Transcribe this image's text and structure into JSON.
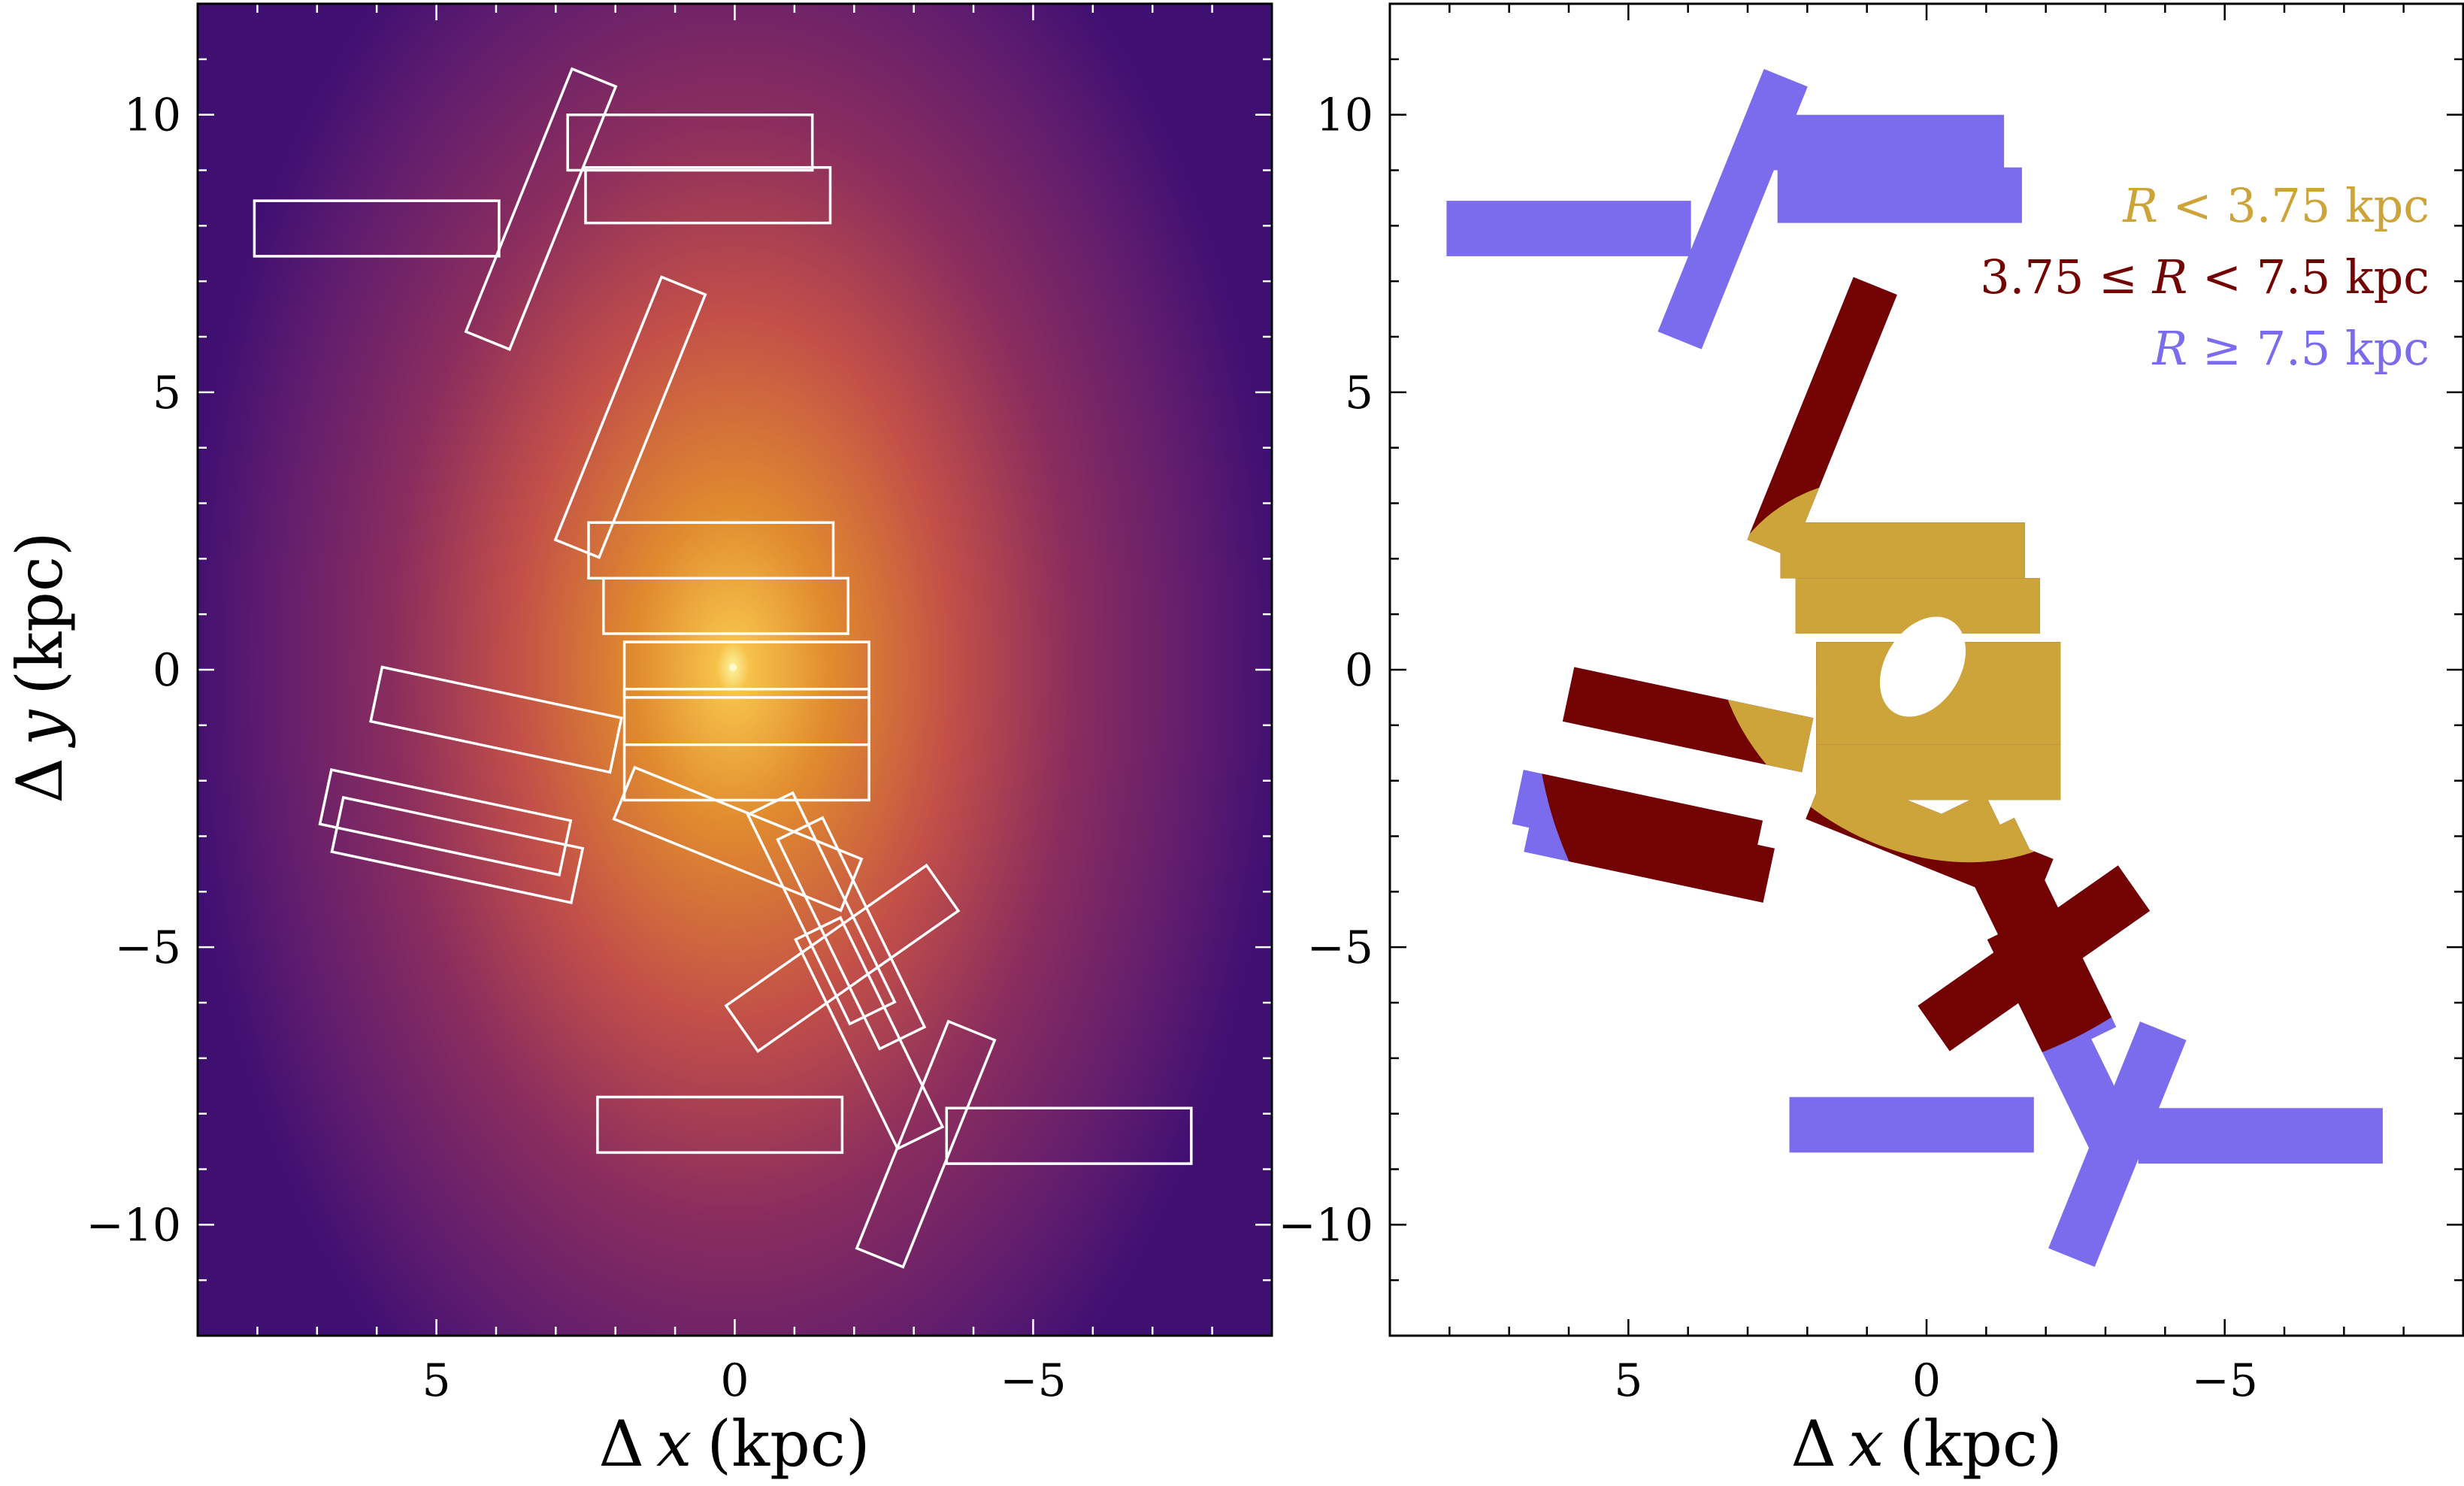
{
  "figure": {
    "colors": {
      "inner": "#cda43a",
      "middle": "#730202",
      "outer": "#7a6cec",
      "box_outline": "#ffffff",
      "density_core": "#ffe566",
      "density_mid": "#e07a2a",
      "density_edge": "#5a1a6a"
    }
  },
  "chart_data": [
    {
      "type": "heatmap",
      "panel": "left",
      "xlabel_symbol": "Δ",
      "xlabel_var": "x",
      "xlabel_unit": "(kpc)",
      "ylabel_symbol": "Δ",
      "ylabel_var": "y",
      "ylabel_unit": "(kpc)",
      "xlim": [
        9.0,
        -9.0
      ],
      "ylim": [
        -12.0,
        12.0
      ],
      "x_ticks": [
        5,
        0,
        -5
      ],
      "x_tick_labels": [
        "5",
        "0",
        "−5"
      ],
      "y_ticks": [
        10,
        5,
        0,
        -5,
        -10
      ],
      "y_tick_labels": [
        "10",
        "5",
        "0",
        "−5",
        "−10"
      ],
      "density_center": [
        0,
        0
      ],
      "grid": false,
      "fields": [
        {
          "cx": 6.0,
          "cy": 7.95,
          "w": 4.1,
          "h": 1.0,
          "angle": 0
        },
        {
          "cx": 0.75,
          "cy": 9.5,
          "w": 4.1,
          "h": 1.0,
          "angle": 0
        },
        {
          "cx": 0.45,
          "cy": 8.55,
          "w": 4.1,
          "h": 1.0,
          "angle": 0
        },
        {
          "cx": 3.25,
          "cy": 8.3,
          "w": 4.75,
          "h": 0.85,
          "angle": -68
        },
        {
          "cx": 1.75,
          "cy": 4.55,
          "w": 4.75,
          "h": 0.85,
          "angle": -68
        },
        {
          "cx": 0.4,
          "cy": 2.15,
          "w": 4.1,
          "h": 1.0,
          "angle": 0
        },
        {
          "cx": 0.15,
          "cy": 1.15,
          "w": 4.1,
          "h": 1.0,
          "angle": 0
        },
        {
          "cx": -0.2,
          "cy": 0.0,
          "w": 4.1,
          "h": 1.0,
          "angle": 0
        },
        {
          "cx": -0.2,
          "cy": -0.85,
          "w": 4.1,
          "h": 1.0,
          "angle": 0
        },
        {
          "cx": 4.0,
          "cy": -0.9,
          "w": 4.1,
          "h": 1.0,
          "angle": 12
        },
        {
          "cx": 4.85,
          "cy": -2.75,
          "w": 4.1,
          "h": 1.0,
          "angle": 12
        },
        {
          "cx": 4.65,
          "cy": -3.25,
          "w": 4.1,
          "h": 1.0,
          "angle": 12
        },
        {
          "cx": -0.2,
          "cy": -1.85,
          "w": 4.1,
          "h": 1.0,
          "angle": 0
        },
        {
          "cx": -0.05,
          "cy": -3.05,
          "w": 4.1,
          "h": 1.0,
          "angle": 22
        },
        {
          "cx": -1.45,
          "cy": -4.3,
          "w": 3.9,
          "h": 0.9,
          "angle": 64
        },
        {
          "cx": -1.95,
          "cy": -4.75,
          "w": 3.9,
          "h": 0.9,
          "angle": 64
        },
        {
          "cx": -1.8,
          "cy": -5.2,
          "w": 4.1,
          "h": 1.0,
          "angle": -35
        },
        {
          "cx": -2.25,
          "cy": -6.55,
          "w": 3.9,
          "h": 0.9,
          "angle": 64
        },
        {
          "cx": 0.25,
          "cy": -8.2,
          "w": 4.1,
          "h": 1.0,
          "angle": 0
        },
        {
          "cx": -5.6,
          "cy": -8.4,
          "w": 4.1,
          "h": 1.0,
          "angle": 0
        },
        {
          "cx": -3.2,
          "cy": -8.55,
          "w": 4.1,
          "h": 0.9,
          "angle": -68
        }
      ]
    },
    {
      "type": "map",
      "panel": "right",
      "xlabel_symbol": "Δ",
      "xlabel_var": "x",
      "xlabel_unit": "(kpc)",
      "xlim": [
        9.0,
        -9.0
      ],
      "ylim": [
        -12.0,
        12.0
      ],
      "x_ticks": [
        5,
        0,
        -5
      ],
      "x_tick_labels": [
        "5",
        "0",
        "−5"
      ],
      "y_ticks": [
        10,
        5,
        0,
        -5,
        -10
      ],
      "y_tick_labels": [
        "10",
        "5",
        "0",
        "−5",
        "−10"
      ],
      "grid": false,
      "legend_placement": "top-right",
      "legend": [
        {
          "var": "R",
          "rel": " < 3.75 kpc",
          "key": "inner"
        },
        {
          "pre": "3.75 ≤ ",
          "var": "R",
          "rel": " < 7.5 kpc",
          "key": "middle"
        },
        {
          "var": "R",
          "rel": " ≥ 7.5 kpc",
          "key": "outer"
        }
      ]
    }
  ]
}
